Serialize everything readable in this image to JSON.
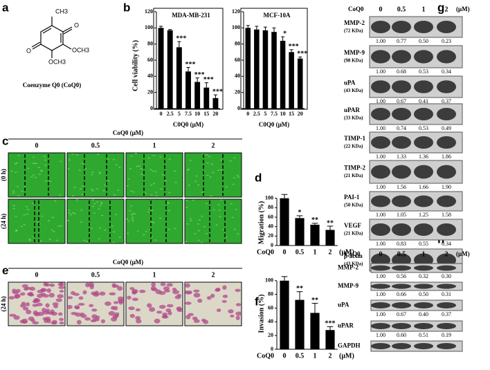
{
  "panel_labels": [
    "a",
    "b",
    "c",
    "d",
    "e",
    "f",
    "g",
    "h"
  ],
  "structure": {
    "labels": [
      "CH3",
      "O",
      "O",
      "OCH3",
      "OCH3"
    ],
    "caption": "Coenzyme Q0 (CoQ0)"
  },
  "chart_data": [
    {
      "type": "bar",
      "title": "MDA-MB-231",
      "categories": [
        "0",
        "2.5",
        "5",
        "7.5",
        "10",
        "15",
        "20"
      ],
      "values": [
        100,
        97,
        76,
        46,
        33,
        26,
        13
      ],
      "errors": [
        2,
        1,
        7,
        5,
        5,
        6,
        4
      ],
      "annotations": [
        null,
        null,
        "***",
        "***",
        "***",
        "***",
        "***"
      ],
      "ylabel": "Cell viability (%)",
      "xlabel": "C0Q0 (μM)",
      "ylim": [
        0,
        120
      ],
      "yticks": [
        0,
        20,
        40,
        60,
        80,
        100,
        120
      ],
      "color": "#000000"
    },
    {
      "type": "bar",
      "title": "MCF-10A",
      "categories": [
        "0",
        "2.5",
        "5",
        "7.5",
        "10",
        "15",
        "20"
      ],
      "values": [
        100,
        98,
        97,
        95,
        84,
        70,
        62
      ],
      "errors": [
        3,
        4,
        4,
        5,
        5,
        3,
        2
      ],
      "annotations": [
        null,
        null,
        null,
        null,
        "*",
        "***",
        "***"
      ],
      "xlabel": "C0Q0 (μM)",
      "ylim": [
        0,
        120
      ],
      "yticks": [
        0,
        20,
        40,
        60,
        80,
        100,
        120
      ],
      "color": "#000000"
    },
    {
      "type": "bar",
      "categories": [
        "0",
        "0.5",
        "1",
        "2"
      ],
      "values": [
        100,
        58,
        44,
        33
      ],
      "errors": [
        8,
        5,
        3,
        8
      ],
      "annotations": [
        null,
        "*",
        "**",
        "**"
      ],
      "ylabel": "Migration (%)",
      "xlabel_prefix": "CoQ0",
      "xlabel_suffix": "(μM)",
      "ylim": [
        0,
        120
      ],
      "yticks": [
        0,
        20,
        40,
        60,
        80,
        100
      ],
      "color": "#000000"
    },
    {
      "type": "bar",
      "categories": [
        "0",
        "0.5",
        "1",
        "2"
      ],
      "values": [
        100,
        72,
        53,
        28
      ],
      "errors": [
        6,
        12,
        14,
        5
      ],
      "annotations": [
        null,
        "**",
        "**",
        "***"
      ],
      "ylabel": "Invasion (%)",
      "xlabel_prefix": "CoQ0",
      "xlabel_suffix": "(μM)",
      "ylim": [
        0,
        120
      ],
      "yticks": [
        0,
        20,
        40,
        60,
        80,
        100
      ],
      "color": "#000000"
    }
  ],
  "migration_images": {
    "header": "CoQ0 (μM)",
    "columns": [
      "0",
      "0.5",
      "1",
      "2"
    ],
    "rows": [
      "(0 h)",
      "(24 h)"
    ]
  },
  "invasion_images": {
    "header": "CoQ0 (μM)",
    "columns": [
      "0",
      "0.5",
      "1",
      "2"
    ],
    "rows": [
      "(24 h)"
    ]
  },
  "western_blot": {
    "header": "CoQ0",
    "columns": [
      "0",
      "0.5",
      "1",
      "2"
    ],
    "unit": "(μM)",
    "rows": [
      {
        "name": "MMP-2",
        "size": "(72 KDa)",
        "values": [
          "1.00",
          "0.77",
          "0.50",
          "0.23"
        ]
      },
      {
        "name": "MMP-9",
        "size": "(98 KDa)",
        "values": [
          "1.00",
          "0.68",
          "0.53",
          "0.34"
        ]
      },
      {
        "name": "uPA",
        "size": "(43 KDa)",
        "values": [
          "1.00",
          "0.67",
          "0.41",
          "0.37"
        ]
      },
      {
        "name": "uPAR",
        "size": "(33 KDa)",
        "values": [
          "1.00",
          "0.74",
          "0.53",
          "0.49"
        ]
      },
      {
        "name": "TIMP-1",
        "size": "(22 KDa)",
        "values": [
          "1.00",
          "1.33",
          "1.36",
          "1.86"
        ]
      },
      {
        "name": "TIMP-2",
        "size": "(21 KDa)",
        "values": [
          "1.00",
          "1.56",
          "1.66",
          "1.90"
        ]
      },
      {
        "name": "PAI-1",
        "size": "(50 KDa)",
        "values": [
          "1.00",
          "1.05",
          "1.25",
          "1.58"
        ]
      },
      {
        "name": "VEGF",
        "size": "(21 KDa)",
        "values": [
          "1.00",
          "0.83",
          "0.55",
          "0.34"
        ]
      },
      {
        "name": "β-actin",
        "size": "(43 KDa)"
      }
    ]
  },
  "rt_pcr": {
    "header": "CoQ0",
    "columns": [
      "0",
      "0.5",
      "1",
      "2"
    ],
    "unit": "(μM)",
    "rows": [
      {
        "name": "MMP-2",
        "values": [
          "1.00",
          "0.56",
          "0.32",
          "0.30"
        ]
      },
      {
        "name": "MMP-9",
        "values": [
          "1.00",
          "0.66",
          "0.50",
          "0.31"
        ]
      },
      {
        "name": "uPA",
        "values": [
          "1.00",
          "0.67",
          "0.40",
          "0.37"
        ]
      },
      {
        "name": "uPAR",
        "values": [
          "1.00",
          "0.60",
          "0.51",
          "0.19"
        ]
      },
      {
        "name": "GAPDH"
      }
    ]
  }
}
